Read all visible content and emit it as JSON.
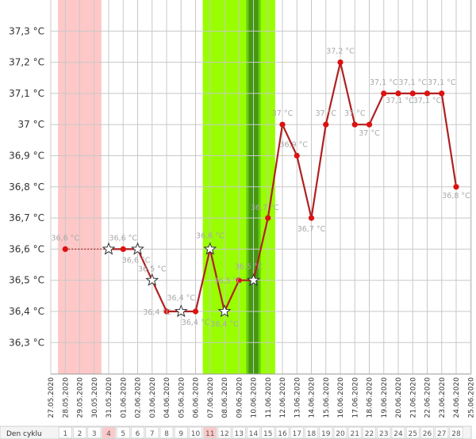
{
  "chart_data": {
    "type": "line",
    "title": "",
    "xlabel": "",
    "ylabel": "",
    "ylim": [
      36.2,
      37.4
    ],
    "y_ticks": [
      36.3,
      36.4,
      36.5,
      36.6,
      36.7,
      36.8,
      36.9,
      37.0,
      37.1,
      37.2,
      37.3
    ],
    "y_tick_labels": [
      "36,3 °C",
      "36,4 °C",
      "36,5 °C",
      "36,6 °C",
      "36,7 °C",
      "36,8 °C",
      "36,9 °C",
      "37 °C",
      "37,1 °C",
      "37,2 °C",
      "37,3 °C"
    ],
    "dates": [
      "27.05.2020",
      "28.05.2020",
      "29.05.2020",
      "30.05.2020",
      "31.05.2020",
      "01.06.2020",
      "02.06.2020",
      "03.06.2020",
      "04.06.2020",
      "05.06.2020",
      "06.06.2020",
      "07.06.2020",
      "08.06.2020",
      "09.06.2020",
      "10.06.2020",
      "11.06.2020",
      "12.06.2020",
      "13.06.2020",
      "14.06.2020",
      "15.06.2020",
      "16.06.2020",
      "17.06.2020",
      "18.06.2020",
      "19.06.2020",
      "20.06.2020",
      "21.06.2020",
      "22.06.2020",
      "23.06.2020",
      "24.06.2020",
      "25.06.2020"
    ],
    "cycle_row_label": "Den cyklu",
    "cycle_days": [
      "1",
      "2",
      "3",
      "4",
      "5",
      "6",
      "7",
      "8",
      "9",
      "10",
      "11",
      "12",
      "13",
      "14",
      "15",
      "16",
      "17",
      "18",
      "19",
      "20",
      "21",
      "22",
      "23",
      "24",
      "25",
      "26",
      "27",
      "28"
    ],
    "highlighted_cycle_days": [
      "4",
      "11"
    ],
    "period_band": [
      "28.05.2020",
      "30.05.2020"
    ],
    "fertile_band": [
      "07.06.2020",
      "11.06.2020"
    ],
    "peak_band": [
      "10.06.2020",
      "10.06.2020"
    ],
    "series": [
      {
        "color": "#b02020",
        "points": [
          {
            "date": "28.05.2020",
            "value": 36.6,
            "label": "36,6 °C",
            "marker": "dot"
          },
          {
            "date": "31.05.2020",
            "value": 36.6,
            "label": "",
            "marker": "star"
          },
          {
            "date": "01.06.2020",
            "value": 36.6,
            "label": "36,6 °C",
            "marker": "dot"
          },
          {
            "date": "02.06.2020",
            "value": 36.6,
            "label": "36,6 °C",
            "marker": "star"
          },
          {
            "date": "03.06.2020",
            "value": 36.5,
            "label": "36,5 °C",
            "marker": "star"
          },
          {
            "date": "04.06.2020",
            "value": 36.4,
            "label": "36,4 °C",
            "marker": "dot"
          },
          {
            "date": "05.06.2020",
            "value": 36.4,
            "label": "36,4 °C",
            "marker": "star"
          },
          {
            "date": "06.06.2020",
            "value": 36.4,
            "label": "36,4 °C",
            "marker": "dot"
          },
          {
            "date": "07.06.2020",
            "value": 36.6,
            "label": "36,6 °C",
            "marker": "star"
          },
          {
            "date": "08.06.2020",
            "value": 36.4,
            "label": "36,4 °C",
            "marker": "star"
          },
          {
            "date": "09.06.2020",
            "value": 36.5,
            "label": "36,5 °C",
            "marker": "dot"
          },
          {
            "date": "10.06.2020",
            "value": 36.5,
            "label": "36,5 °C",
            "marker": "star"
          },
          {
            "date": "11.06.2020",
            "value": 36.7,
            "label": "36,7 °C",
            "marker": "dot"
          },
          {
            "date": "12.06.2020",
            "value": 37.0,
            "label": "37 °C",
            "marker": "dot"
          },
          {
            "date": "13.06.2020",
            "value": 36.9,
            "label": "36,9 °C",
            "marker": "dot"
          },
          {
            "date": "14.06.2020",
            "value": 36.7,
            "label": "36,7 °C",
            "marker": "dot"
          },
          {
            "date": "15.06.2020",
            "value": 37.0,
            "label": "37 °C",
            "marker": "dot"
          },
          {
            "date": "16.06.2020",
            "value": 37.2,
            "label": "37,2 °C",
            "marker": "dot"
          },
          {
            "date": "17.06.2020",
            "value": 37.0,
            "label": "37 °C",
            "marker": "dot"
          },
          {
            "date": "18.06.2020",
            "value": 37.0,
            "label": "37 °C",
            "marker": "dot"
          },
          {
            "date": "19.06.2020",
            "value": 37.1,
            "label": "37,1 °C",
            "marker": "dot"
          },
          {
            "date": "20.06.2020",
            "value": 37.1,
            "label": "37,1 °C",
            "marker": "dot"
          },
          {
            "date": "21.06.2020",
            "value": 37.1,
            "label": "37,1 °C",
            "marker": "dot"
          },
          {
            "date": "22.06.2020",
            "value": 37.1,
            "label": "37,1 °C",
            "marker": "dot"
          },
          {
            "date": "23.06.2020",
            "value": 37.1,
            "label": "37,1 °C",
            "marker": "dot"
          },
          {
            "date": "24.06.2020",
            "value": 36.8,
            "label": "36,8 °C",
            "marker": "dot"
          }
        ]
      }
    ],
    "grid": true
  },
  "colors": {
    "period": "#ffc8c8",
    "fertile": "#99ff00",
    "peak_outer": "#66cc11",
    "peak_inner": "#449911",
    "line": "#b02020",
    "dot": "#dd1111",
    "grid": "#c8c8c8",
    "cycle_highlight": "#ffc8c8"
  }
}
